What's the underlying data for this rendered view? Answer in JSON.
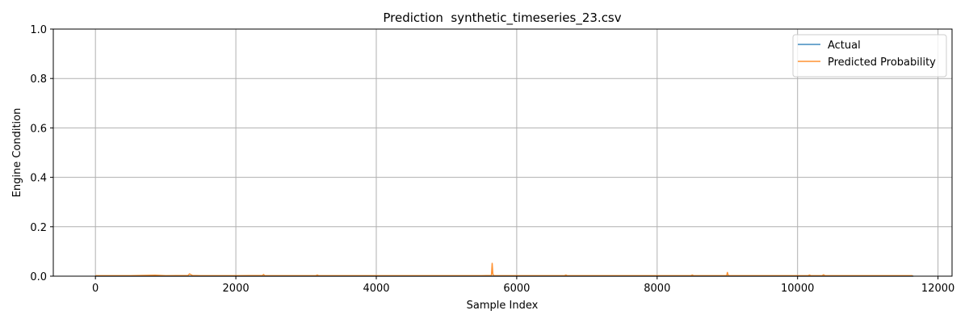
{
  "chart_data": {
    "type": "line",
    "title": "Prediction  synthetic_timeseries_23.csv",
    "xlabel": "Sample Index",
    "ylabel": "Engine Condition",
    "xlim": [
      -600,
      12200
    ],
    "ylim": [
      0,
      1.0
    ],
    "xticks": [
      0,
      2000,
      4000,
      6000,
      8000,
      10000,
      12000
    ],
    "xtick_labels": [
      "0",
      "2000",
      "4000",
      "6000",
      "8000",
      "10000",
      "12000"
    ],
    "yticks": [
      0,
      0.2,
      0.4,
      0.6,
      0.8,
      1.0
    ],
    "ytick_labels": [
      "0.0",
      "0.2",
      "0.4",
      "0.6",
      "0.8",
      "1.0"
    ],
    "grid": true,
    "legend_position": "top-right",
    "series": [
      {
        "name": "Actual",
        "color": "#1f77b4",
        "x": [
          0,
          11650
        ],
        "values": [
          0,
          0
        ]
      },
      {
        "name": "Predicted Probability",
        "color": "#ff7f0e",
        "x": [
          0,
          500,
          850,
          1000,
          1320,
          1340,
          1360,
          1380,
          1500,
          2000,
          2380,
          2395,
          2410,
          2600,
          3140,
          3160,
          3180,
          3500,
          4000,
          4500,
          5000,
          5500,
          5640,
          5650,
          5660,
          5670,
          5700,
          6000,
          6500,
          6680,
          6700,
          6720,
          7000,
          7500,
          8000,
          8480,
          8500,
          8520,
          8900,
          8990,
          9000,
          9010,
          9020,
          9500,
          10000,
          10150,
          10170,
          10190,
          10350,
          10370,
          10390,
          10500,
          11000,
          11500,
          11640
        ],
        "values": [
          0.002,
          0.002,
          0.004,
          0.002,
          0.003,
          0.009,
          0.006,
          0.003,
          0.002,
          0.002,
          0.003,
          0.007,
          0.002,
          0.002,
          0.002,
          0.005,
          0.002,
          0.002,
          0.002,
          0.002,
          0.002,
          0.002,
          0.003,
          0.052,
          0.01,
          0.002,
          0.002,
          0.002,
          0.002,
          0.002,
          0.005,
          0.002,
          0.002,
          0.002,
          0.002,
          0.002,
          0.005,
          0.002,
          0.002,
          0.002,
          0.015,
          0.006,
          0.002,
          0.002,
          0.002,
          0.002,
          0.005,
          0.002,
          0.002,
          0.006,
          0.002,
          0.002,
          0.002,
          0.002,
          0.002
        ]
      }
    ]
  }
}
